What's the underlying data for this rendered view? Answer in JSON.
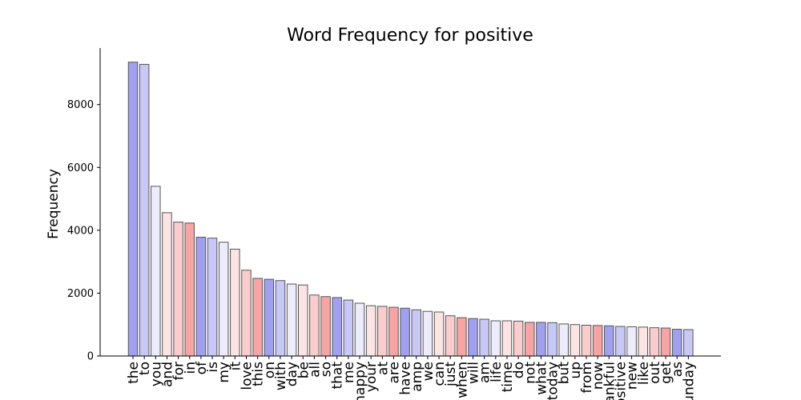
{
  "chart_data": {
    "type": "bar",
    "title": "Word Frequency for positive",
    "xlabel": "",
    "ylabel": "Frequency",
    "ylim": [
      0,
      9800
    ],
    "yticks": [
      0,
      2000,
      4000,
      6000,
      8000
    ],
    "grid": false,
    "categories": [
      "the",
      "to",
      "you",
      "and",
      "for",
      "in",
      "of",
      "is",
      "my",
      "it",
      "love",
      "this",
      "on",
      "with",
      "day",
      "be",
      "all",
      "so",
      "that",
      "me",
      "happy",
      "your",
      "at",
      "are",
      "have",
      "amp",
      "we",
      "can",
      "just",
      "when",
      "will",
      "am",
      "life",
      "time",
      "do",
      "not",
      "what",
      "today",
      "but",
      "up",
      "from",
      "now",
      "thankful",
      "positive",
      "new",
      "like",
      "out",
      "get",
      "as",
      "sunday"
    ],
    "values": [
      9350,
      9280,
      5400,
      4560,
      4260,
      4230,
      3780,
      3750,
      3620,
      3400,
      2730,
      2470,
      2440,
      2400,
      2290,
      2260,
      1940,
      1890,
      1860,
      1780,
      1680,
      1600,
      1580,
      1550,
      1520,
      1470,
      1420,
      1400,
      1280,
      1220,
      1190,
      1170,
      1120,
      1120,
      1110,
      1070,
      1070,
      1060,
      1020,
      1000,
      980,
      970,
      960,
      940,
      930,
      920,
      900,
      890,
      850,
      840
    ],
    "colors": [
      "#a0a0f0",
      "#c8c8f8",
      "#ececfc",
      "#fce4e4",
      "#fbcccc",
      "#f8a4a4",
      "#a0a0f0",
      "#c8c8f8",
      "#ececfc",
      "#fce4e4",
      "#fbcccc",
      "#f8a4a4",
      "#a0a0f0",
      "#c8c8f8",
      "#ececfc",
      "#fce4e4",
      "#fbcccc",
      "#f8a4a4",
      "#a0a0f0",
      "#c8c8f8",
      "#ececfc",
      "#fce4e4",
      "#fbcccc",
      "#f8a4a4",
      "#a0a0f0",
      "#c8c8f8",
      "#ececfc",
      "#fce4e4",
      "#fbcccc",
      "#f8a4a4",
      "#a0a0f0",
      "#c8c8f8",
      "#ececfc",
      "#fce4e4",
      "#fbcccc",
      "#f8a4a4",
      "#a0a0f0",
      "#c8c8f8",
      "#ececfc",
      "#fce4e4",
      "#fbcccc",
      "#f8a4a4",
      "#a0a0f0",
      "#c8c8f8",
      "#ececfc",
      "#fce4e4",
      "#fbcccc",
      "#f8a4a4",
      "#a0a0f0",
      "#c8c8f8"
    ],
    "edge_color": "#555555"
  }
}
